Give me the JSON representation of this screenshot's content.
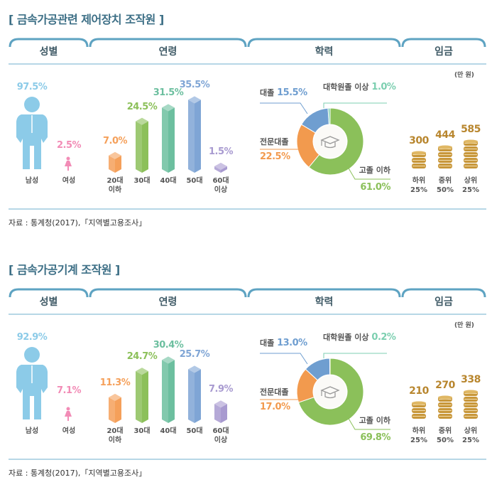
{
  "headers": {
    "gender": "성별",
    "age": "연령",
    "education": "학력",
    "wage": "임금"
  },
  "wage_unit": "(만 원)",
  "colors": {
    "male": "#8ccbe8",
    "female": "#f28cb6",
    "ages": [
      "#f5a05a",
      "#8cc05a",
      "#6cbf9f",
      "#7fa5d5",
      "#a89ad0"
    ],
    "edu": {
      "high": "#8bc05a",
      "college2": "#f29a4e",
      "college4": "#6f9ed0",
      "grad": "#7ccfb0"
    },
    "coin": "#c8973a",
    "title": "#3d6f86"
  },
  "sections": [
    {
      "title": "[ 금속가공관련 제어장치 조작원 ]",
      "gender": [
        {
          "label": "남성",
          "value": "97.5%"
        },
        {
          "label": "여성",
          "value": "2.5%"
        }
      ],
      "age": {
        "labels": [
          "20대\n이하",
          "30대",
          "40대",
          "50대",
          "60대\n이상"
        ],
        "values": [
          7.0,
          24.5,
          31.5,
          35.5,
          1.5
        ],
        "texts": [
          "7.0%",
          "24.5%",
          "31.5%",
          "35.5%",
          "1.5%"
        ]
      },
      "education": {
        "high": {
          "label": "고졸 이하",
          "value": 61.0,
          "text": "61.0%"
        },
        "college2": {
          "label": "전문대졸",
          "value": 22.5,
          "text": "22.5%"
        },
        "college4": {
          "label": "대졸",
          "value": 15.5,
          "text": "15.5%"
        },
        "grad": {
          "label": "대학원졸 이상",
          "value": 1.0,
          "text": "1.0%"
        }
      },
      "wage": [
        {
          "label": "하위\n25%",
          "value": "300"
        },
        {
          "label": "중위\n50%",
          "value": "444"
        },
        {
          "label": "상위\n25%",
          "value": "585"
        }
      ],
      "source": "자료 : 통계청(2017),「지역별고용조사」"
    },
    {
      "title": "[ 금속가공기계 조작원 ]",
      "gender": [
        {
          "label": "남성",
          "value": "92.9%"
        },
        {
          "label": "여성",
          "value": "7.1%"
        }
      ],
      "age": {
        "labels": [
          "20대\n이하",
          "30대",
          "40대",
          "50대",
          "60대\n이상"
        ],
        "values": [
          11.3,
          24.7,
          30.4,
          25.7,
          7.9
        ],
        "texts": [
          "11.3%",
          "24.7%",
          "30.4%",
          "25.7%",
          "7.9%"
        ]
      },
      "education": {
        "high": {
          "label": "고졸 이하",
          "value": 69.8,
          "text": "69.8%"
        },
        "college2": {
          "label": "전문대졸",
          "value": 17.0,
          "text": "17.0%"
        },
        "college4": {
          "label": "대졸",
          "value": 13.0,
          "text": "13.0%"
        },
        "grad": {
          "label": "대학원졸 이상",
          "value": 0.2,
          "text": "0.2%"
        }
      },
      "wage": [
        {
          "label": "하위\n25%",
          "value": "210"
        },
        {
          "label": "중위\n50%",
          "value": "270"
        },
        {
          "label": "상위\n25%",
          "value": "338"
        }
      ],
      "source": "자료 : 통계청(2017),「지역별고용조사」"
    }
  ]
}
